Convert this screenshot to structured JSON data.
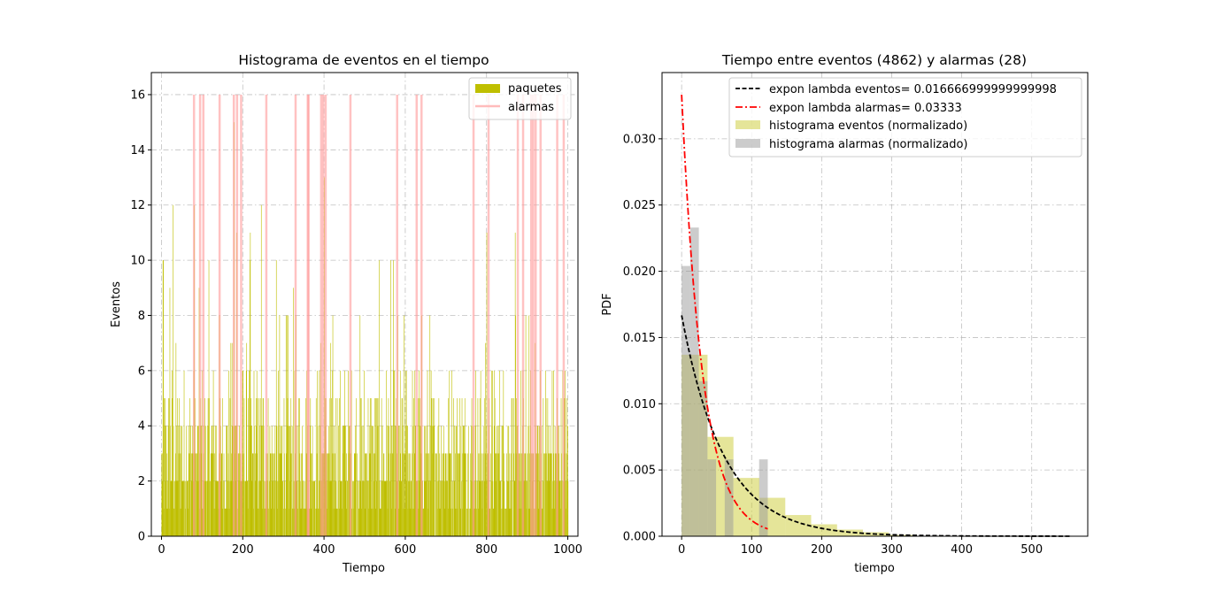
{
  "chart_data": [
    {
      "type": "bar",
      "title": "Histograma de eventos en el tiempo",
      "xlabel": "Tiempo",
      "ylabel": "Eventos",
      "xlim": [
        -25,
        1025
      ],
      "ylim": [
        0,
        16.8
      ],
      "xticks": [
        0,
        200,
        400,
        600,
        800,
        1000
      ],
      "yticks": [
        0,
        2,
        4,
        6,
        8,
        10,
        12,
        14,
        16
      ],
      "grid": true,
      "legend_position": "top-right",
      "series": [
        {
          "name": "paquetes",
          "color": "#bfbf00",
          "description": "events per time unit for t = 0..1000 (values mostly 1-6, peaks up to 15)",
          "peaks": [
            {
              "x": 4,
              "y": 10
            },
            {
              "x": 20,
              "y": 9
            },
            {
              "x": 28,
              "y": 12
            },
            {
              "x": 80,
              "y": 12
            },
            {
              "x": 178,
              "y": 15
            },
            {
              "x": 184,
              "y": 11
            },
            {
              "x": 400,
              "y": 13
            },
            {
              "x": 218,
              "y": 11
            },
            {
              "x": 245,
              "y": 12
            },
            {
              "x": 870,
              "y": 11
            },
            {
              "x": 800,
              "y": 11
            }
          ]
        },
        {
          "name": "alarmas",
          "color": "#ff9999",
          "value": 16,
          "x": [
            80,
            95,
            103,
            143,
            178,
            186,
            196,
            258,
            330,
            360,
            362,
            393,
            398,
            404,
            465,
            580,
            628,
            640,
            768,
            805,
            877,
            890,
            910,
            915,
            921,
            933,
            974,
            990
          ]
        }
      ]
    },
    {
      "type": "bar+line",
      "title": "Tiempo entre eventos (4862) y alarmas (28)",
      "xlabel": "tiempo",
      "ylabel": "PDF",
      "xlim": [
        -28,
        580
      ],
      "ylim": [
        0,
        0.035
      ],
      "xticks": [
        0,
        100,
        200,
        300,
        400,
        500
      ],
      "yticks": [
        "0.000",
        "0.005",
        "0.010",
        "0.015",
        "0.020",
        "0.025",
        "0.030"
      ],
      "grid": true,
      "legend_position": "top-right",
      "series": [
        {
          "name": "expon lambda eventos= 0.016666999999999998",
          "kind": "line",
          "style": "dashed",
          "color": "#000000",
          "lambda": 0.016667,
          "x_range": [
            0,
            555
          ]
        },
        {
          "name": "expon lambda alarmas= 0.03333",
          "kind": "line",
          "style": "dashdot",
          "color": "#ff0000",
          "lambda": 0.03333,
          "x_range": [
            0,
            123
          ]
        },
        {
          "name": "histograma eventos (normalizado)",
          "kind": "bar",
          "color": "#cccc33",
          "bin_width": 37,
          "bins": [
            0,
            37,
            74,
            111,
            148,
            185,
            222,
            259,
            296
          ],
          "values": [
            0.0137,
            0.0075,
            0.0044,
            0.0029,
            0.0016,
            0.0009,
            0.0005,
            0.0003,
            0.0001
          ]
        },
        {
          "name": "histograma alarmas (normalizado)",
          "kind": "bar",
          "color": "#999999",
          "bin_width": 12.3,
          "bins": [
            0,
            12.3,
            24.6,
            36.9,
            49.2,
            61.5,
            73.8,
            86.1,
            98.4,
            110.7
          ],
          "values": [
            0.0204,
            0.0233,
            0.0117,
            0.0058,
            0.0,
            0.0058,
            0.0,
            0.0,
            0.0,
            0.0058
          ]
        }
      ]
    }
  ]
}
